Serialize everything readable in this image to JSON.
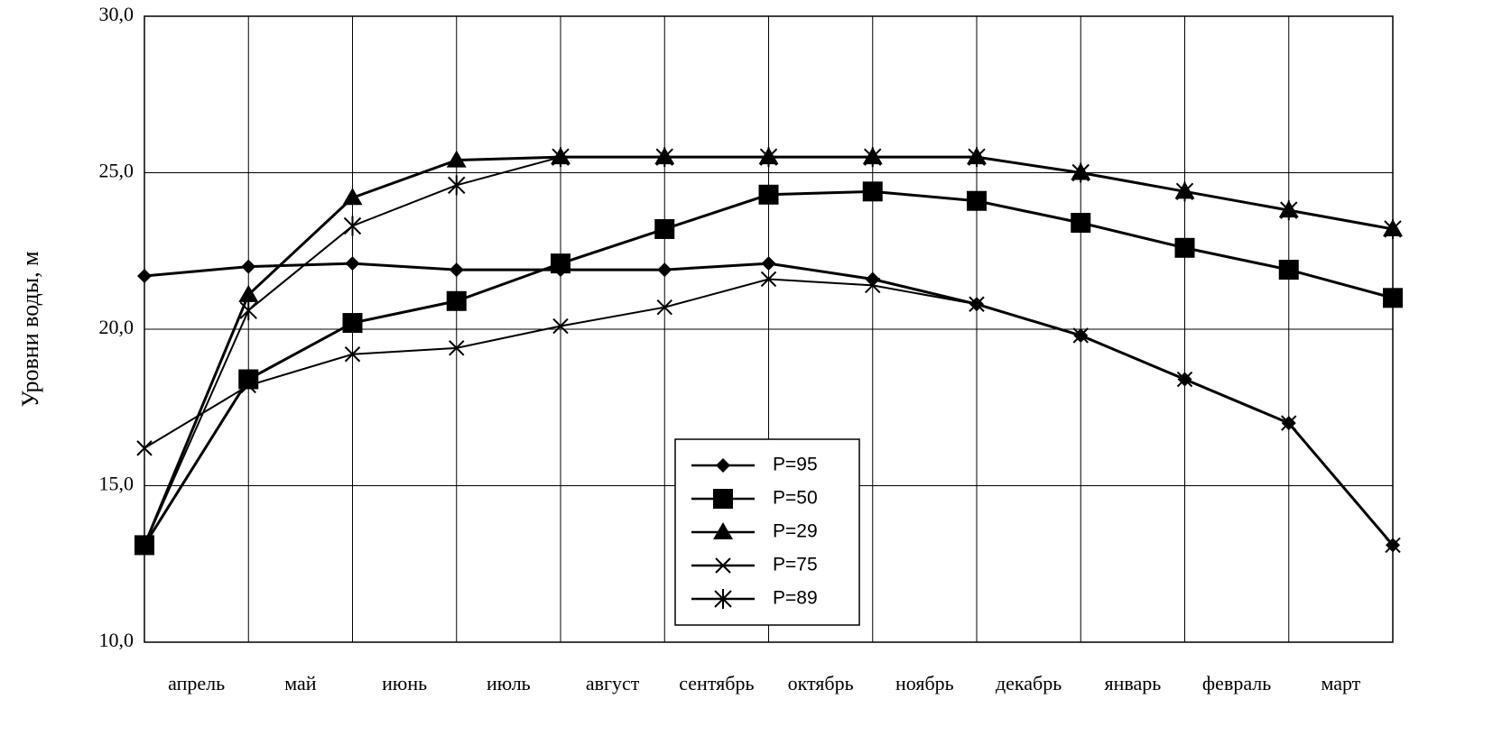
{
  "chart_data": {
    "type": "line",
    "y_label": "Уровни воды, м",
    "categories": [
      "апрель",
      "май",
      "июнь",
      "июль",
      "август",
      "сентябрь",
      "октябрь",
      "ноябрь",
      "декабрь",
      "январь",
      "февраль",
      "март",
      null
    ],
    "ylim": [
      10,
      30
    ],
    "yticks": [
      {
        "value": 10,
        "label": "10,0"
      },
      {
        "value": 15,
        "label": "15,0"
      },
      {
        "value": 20,
        "label": "20,0"
      },
      {
        "value": 25,
        "label": "25,0"
      },
      {
        "value": 30,
        "label": "30,0"
      }
    ],
    "grid": true,
    "legend": "center",
    "series": [
      {
        "name": "P=95",
        "color": "#000000",
        "marker": "diamond",
        "values": [
          21.7,
          22.0,
          22.1,
          21.9,
          21.9,
          21.9,
          22.1,
          21.6,
          20.8,
          19.8,
          18.4,
          17.0,
          13.1
        ]
      },
      {
        "name": "P=50",
        "color": "#000000",
        "marker": "square",
        "values": [
          13.1,
          18.4,
          20.2,
          20.9,
          22.1,
          23.2,
          24.3,
          24.4,
          24.1,
          23.4,
          22.6,
          21.9,
          21.0
        ]
      },
      {
        "name": "P=29",
        "color": "#000000",
        "marker": "triangle",
        "values": [
          13.1,
          21.1,
          24.2,
          25.4,
          25.5,
          25.5,
          25.5,
          25.5,
          25.5,
          25.0,
          24.4,
          23.8,
          23.2
        ]
      },
      {
        "name": "P=75",
        "color": "#000000",
        "marker": "x",
        "values": [
          16.2,
          18.2,
          19.2,
          19.4,
          20.1,
          20.7,
          21.6,
          21.4,
          20.8,
          19.8,
          18.4,
          17.0,
          13.1
        ]
      },
      {
        "name": "P=89",
        "color": "#000000",
        "marker": "star",
        "values": [
          13.1,
          20.6,
          23.3,
          24.6,
          25.5,
          25.5,
          25.5,
          25.5,
          25.5,
          25.0,
          24.4,
          23.8,
          23.2
        ]
      }
    ]
  }
}
